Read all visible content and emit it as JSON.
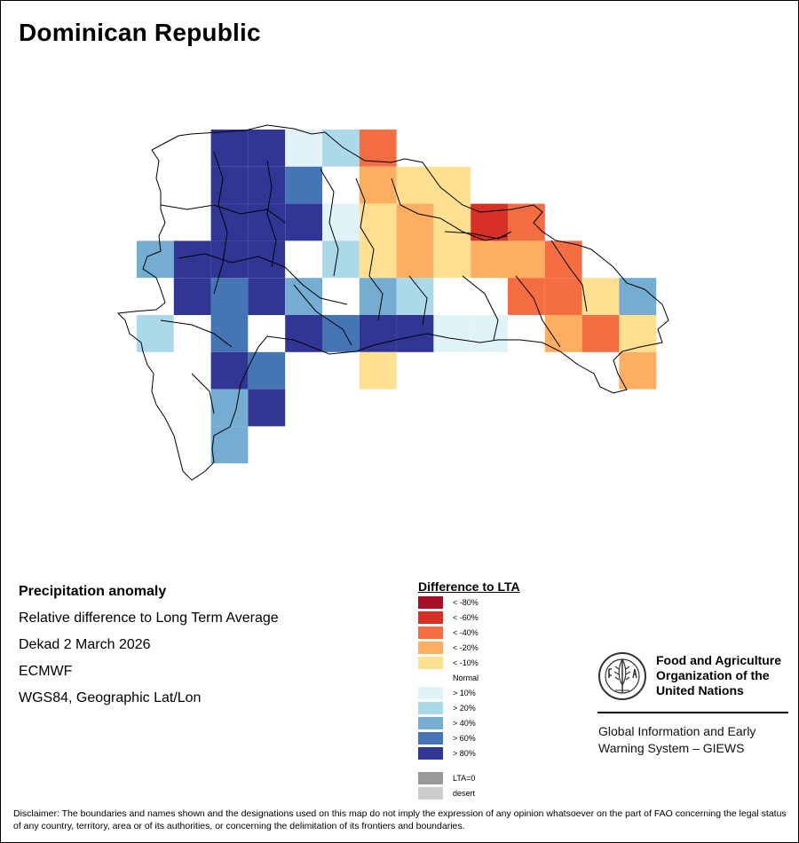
{
  "title": "Dominican Republic",
  "info": {
    "heading": "Precipitation anomaly",
    "subtitle": "Relative difference to Long Term Average",
    "period": "Dekad 2 March 2026",
    "source": "ECMWF",
    "projection": "WGS84, Geographic Lat/Lon"
  },
  "legend": {
    "title": "Difference to LTA",
    "items": [
      {
        "key": "m80",
        "label": "< -80%",
        "color": "#a50f26"
      },
      {
        "key": "m60",
        "label": "< -60%",
        "color": "#d73027"
      },
      {
        "key": "m40",
        "label": "< -40%",
        "color": "#f46d43"
      },
      {
        "key": "m20",
        "label": "< -20%",
        "color": "#fdae61"
      },
      {
        "key": "m10",
        "label": "< -10%",
        "color": "#fee090"
      },
      {
        "key": "n",
        "label": "Normal",
        "color": "#ffffff"
      },
      {
        "key": "p10",
        "label": "> 10%",
        "color": "#e0f3f8"
      },
      {
        "key": "p20",
        "label": "> 20%",
        "color": "#abd9e9"
      },
      {
        "key": "p40",
        "label": "> 40%",
        "color": "#74add1"
      },
      {
        "key": "p60",
        "label": "> 60%",
        "color": "#4575b4"
      },
      {
        "key": "p80",
        "label": "> 80%",
        "color": "#313695"
      }
    ],
    "extra": [
      {
        "label": "LTA=0",
        "color": "#999999"
      },
      {
        "label": "desert",
        "color": "#cccccc"
      }
    ]
  },
  "map_grid": {
    "cell_deg": 0.25,
    "lon_start": -71.875,
    "lat_start": 19.875,
    "rows": [
      "...p80,p80,p10,p20,m40,.,.,.,.,.,.,.,.,.",
      "...p80,p80,p60,n,m20,m10,m10,.,.,.,.,.,.,.",
      "...p80,p80,p80,p10,m10,m20,m10,m60,m40,.,.,.,.,.",
      "p40,p80,p80,p80,n,p20,m10,m20,m10,m20,m20,m40,.,.,.",
      "n,p80,p60,p80,p40,n,p40,p20,n,n,m40,m40,m10,p40,.",
      "p20,n,p60,n,p80,p60,p80,p80,p10,p10,n,m20,m40,m10,.",
      "...p80,p60,.,.,m10,.,.,.,.,.,.,m20,.,.,.",
      "...p40,p80,.,.,.,.,.,.,.,.,.,.,.,.,.",
      "...p40,.,.,.,.,.,.,.,.,.,.,.,.,.,."
    ]
  }
}
